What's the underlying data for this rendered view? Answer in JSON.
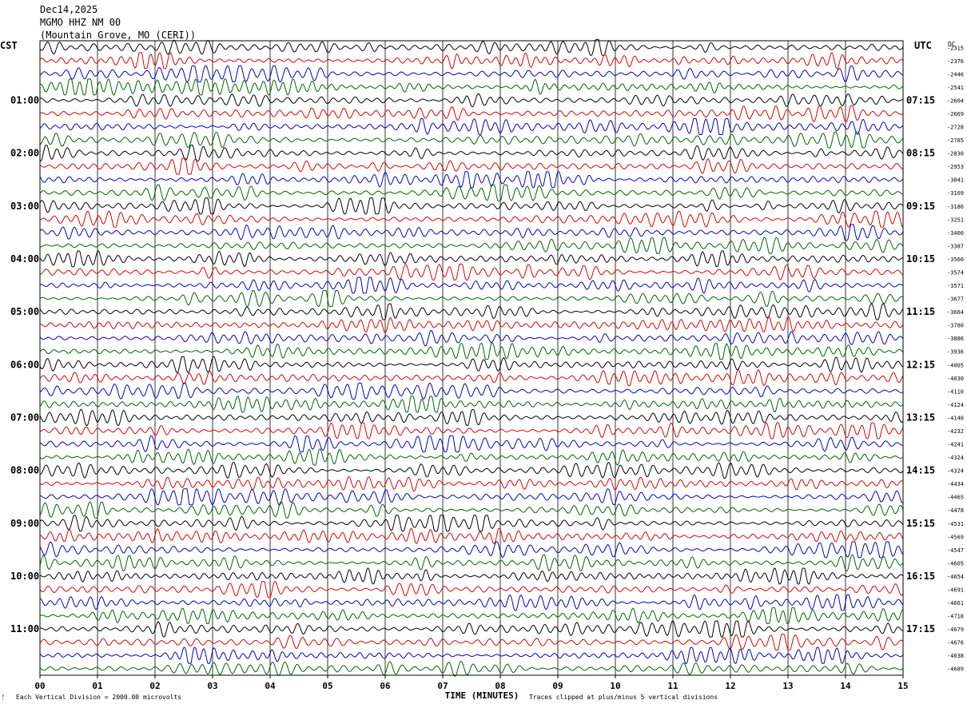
{
  "header": {
    "date": "Dec14,2025",
    "station": "MGMO HHZ NM 00",
    "location": "(Mountain Grove, MO (CERI))"
  },
  "left_zone_label": "CST",
  "right_zone_label": "UTC",
  "dc_label": "DC",
  "footer": {
    "scale_note": "Each Vertical Division = 2000.00 microvolts",
    "clip_note": "Traces clipped at plus/minus 5 vertical divisions",
    "mark": "ᚨ"
  },
  "chart_data": {
    "type": "line",
    "title": "",
    "xlabel": "TIME (MINUTES)",
    "ylabel": "",
    "xlim": [
      0,
      15
    ],
    "x_ticks": [
      "00",
      "01",
      "02",
      "03",
      "04",
      "05",
      "06",
      "07",
      "08",
      "09",
      "10",
      "11",
      "12",
      "13",
      "14",
      "15"
    ],
    "trace_count": 48,
    "trace_colors": [
      "#000000",
      "#e00000",
      "#0000cc",
      "#006400"
    ],
    "left_hour_labels": [
      "01:00",
      "02:00",
      "03:00",
      "04:00",
      "05:00",
      "06:00",
      "07:00",
      "08:00",
      "09:00",
      "10:00",
      "11:00"
    ],
    "right_hour_labels": [
      "07:15",
      "08:15",
      "09:15",
      "10:15",
      "11:15",
      "12:15",
      "13:15",
      "14:15",
      "15:15",
      "16:15",
      "17:15"
    ],
    "dc_offsets": [
      "-2315",
      "-2376",
      "-2446",
      "-2541",
      "-2604",
      "-2669",
      "-2728",
      "-2785",
      "-2830",
      "-2953",
      "-3041",
      "-3109",
      "-3186",
      "-3251",
      "-3400",
      "-3387",
      "-3560",
      "-3574",
      "-3571",
      "-3677",
      "-3664",
      "-3780",
      "-3886",
      "-3936",
      "-4005",
      "-4030",
      "-4110",
      "-4124",
      "-4148",
      "-4232",
      "-4241",
      "-4324",
      "-4324",
      "-4434",
      "-4465",
      "-4478",
      "-4531",
      "-4569",
      "-4547",
      "-4605",
      "-4654",
      "-4691",
      "-4661",
      "-4718",
      "-4679",
      "-4676",
      "-4638",
      "-4689"
    ]
  }
}
